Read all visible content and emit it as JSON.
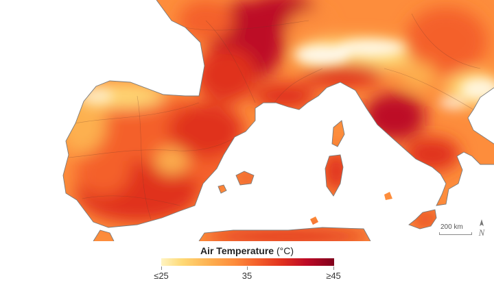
{
  "legend": {
    "title_bold": "Air Temperature",
    "title_unit": " (°C)",
    "ticks": [
      {
        "label": "≤25",
        "value": 25
      },
      {
        "label": "35",
        "value": 35
      },
      {
        "label": "≥45",
        "value": 45
      }
    ],
    "colors": [
      "#fff4c2",
      "#fed976",
      "#fdb050",
      "#fd8d3c",
      "#f4612b",
      "#e0301e",
      "#bd0a26",
      "#80001c"
    ]
  },
  "scale_bar": {
    "label": "200 km"
  },
  "north_arrow": {
    "label": "N"
  }
}
